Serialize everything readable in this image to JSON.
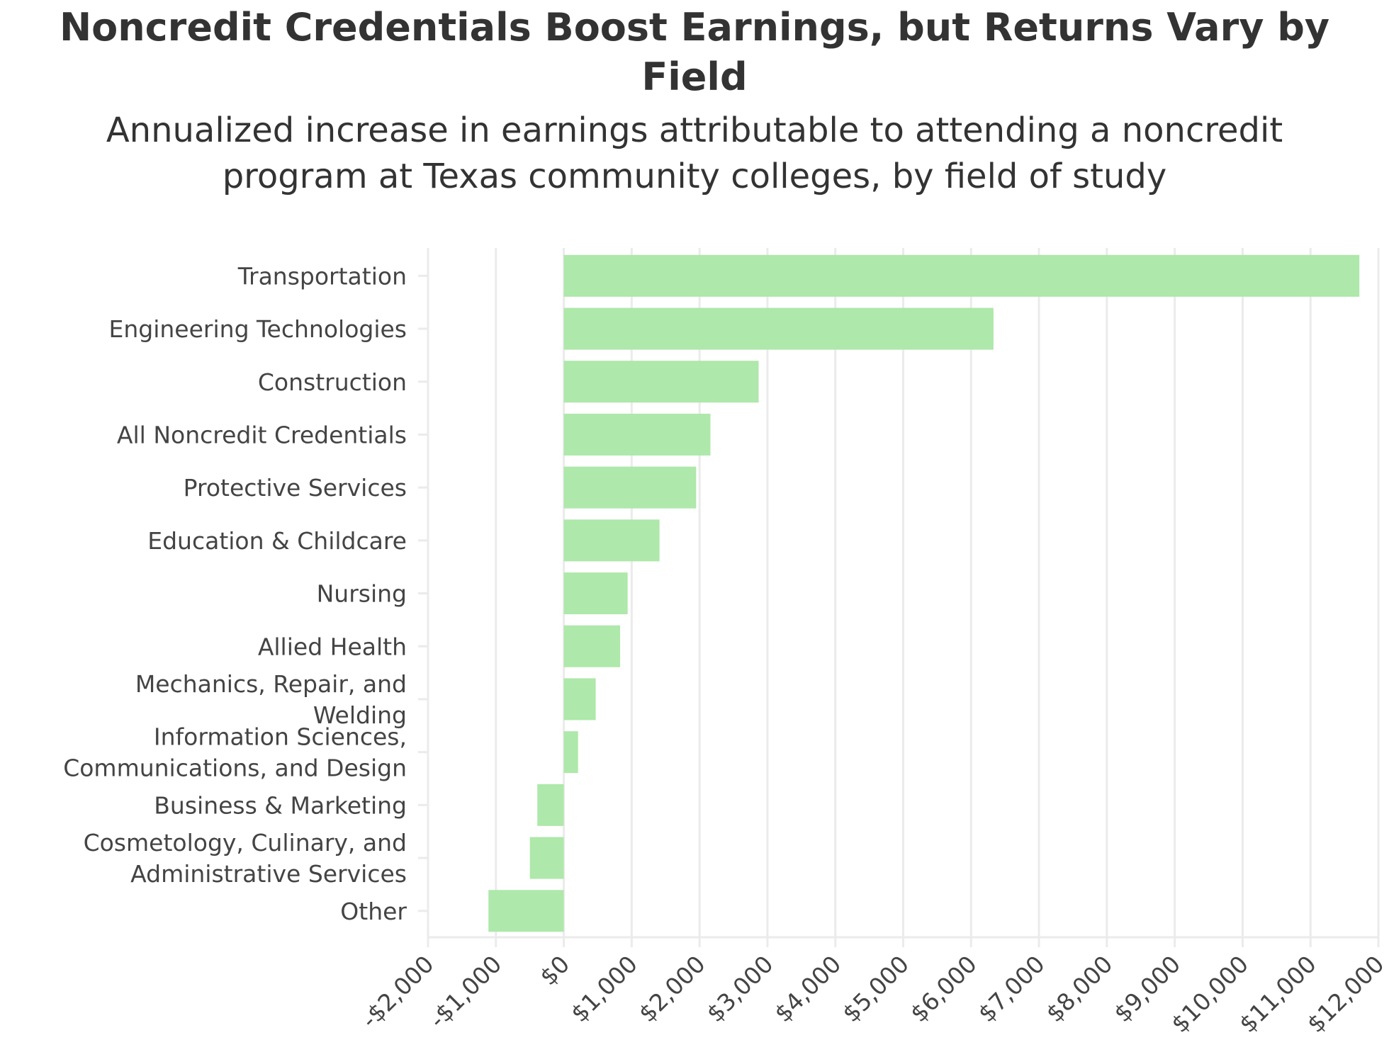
{
  "chart_data": {
    "type": "bar",
    "orientation": "horizontal",
    "title": "Noncredit Credentials Boost Earnings, but Returns Vary by\nField",
    "subtitle": "Annualized increase in earnings attributable to attending a noncredit\nprogram at Texas community colleges, by field of study",
    "xlabel": "",
    "ylabel": "",
    "xlim": [
      -2000,
      12000
    ],
    "x_ticks": [
      -2000,
      -1000,
      0,
      1000,
      2000,
      3000,
      4000,
      5000,
      6000,
      7000,
      8000,
      9000,
      10000,
      11000,
      12000
    ],
    "x_tick_labels": [
      "-$2,000",
      "-$1,000",
      "$0",
      "$1,000",
      "$2,000",
      "$3,000",
      "$4,000",
      "$5,000",
      "$6,000",
      "$7,000",
      "$8,000",
      "$9,000",
      "$10,000",
      "$11,000",
      "$12,000"
    ],
    "grid": "vertical",
    "bar_color": "#aee8aa",
    "categories": [
      "Transportation",
      "Engineering Technologies",
      "Construction",
      "All Noncredit Credentials",
      "Protective Services",
      "Education & Childcare",
      "Nursing",
      "Allied Health",
      "Mechanics, Repair, and\nWelding",
      "Information Sciences,\nCommunications, and Design",
      "Business & Marketing",
      "Cosmetology, Culinary, and\nAdministrative Services",
      "Other"
    ],
    "values": [
      11720,
      6330,
      2870,
      2160,
      1950,
      1410,
      940,
      830,
      470,
      210,
      -390,
      -500,
      -1110
    ]
  }
}
